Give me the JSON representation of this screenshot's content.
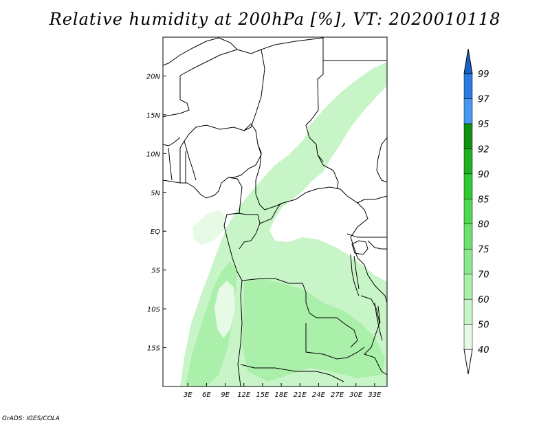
{
  "title": "Relative humidity at 200hPa [%], VT: 2020010118",
  "credit": "GrADS: IGES/COLA",
  "map": {
    "lon_range": [
      -1,
      35
    ],
    "lat_range": [
      -20,
      25
    ],
    "x_ticks": [
      "3E",
      "6E",
      "9E",
      "12E",
      "15E",
      "18E",
      "21E",
      "24E",
      "27E",
      "30E",
      "33E"
    ],
    "x_tick_values": [
      3,
      6,
      9,
      12,
      15,
      18,
      21,
      24,
      27,
      30,
      33
    ],
    "y_ticks": [
      "20N",
      "15N",
      "10N",
      "5N",
      "EQ",
      "5S",
      "10S",
      "15S"
    ],
    "y_tick_values": [
      20,
      15,
      10,
      5,
      0,
      -5,
      -10,
      -15
    ]
  },
  "colorbar": {
    "levels": [
      "40",
      "50",
      "60",
      "70",
      "75",
      "80",
      "85",
      "90",
      "92",
      "95",
      "97",
      "99"
    ],
    "colors": [
      "#e6fae6",
      "#c8f5c8",
      "#aaf0aa",
      "#8ce88c",
      "#6ee06e",
      "#50d850",
      "#32c832",
      "#20b020",
      "#109010",
      "#4898f0",
      "#2a7ae0",
      "#1a60c8"
    ]
  },
  "palette": {
    "rh_light": "#e6fae6",
    "rh_mid": "#c8f5c8",
    "rh_high": "#aaf0aa",
    "border": "#000000"
  }
}
